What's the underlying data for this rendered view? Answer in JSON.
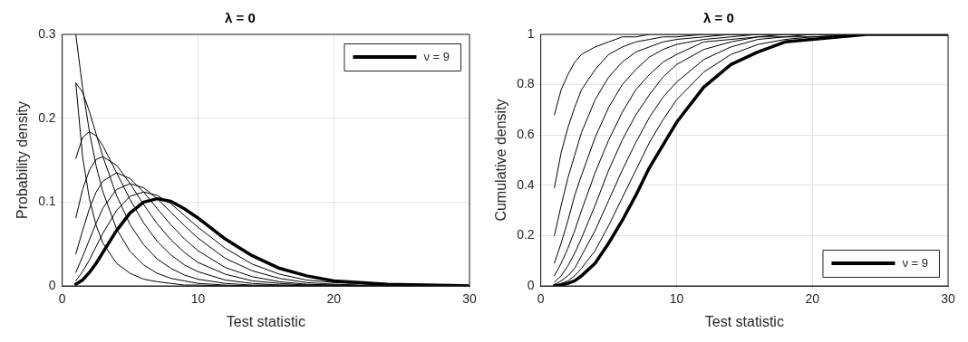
{
  "chart_data": [
    {
      "type": "line",
      "title": "λ = 0",
      "xlabel": "Test statistic",
      "ylabel": "Probability density",
      "x": [
        1,
        1.5,
        2,
        2.5,
        3,
        4,
        5,
        6,
        7,
        8,
        9,
        10,
        12,
        14,
        16,
        18,
        20,
        24,
        30
      ],
      "xlim": [
        0,
        30
      ],
      "xticks": [
        0,
        10,
        20,
        30
      ],
      "ylim": [
        0,
        0.3
      ],
      "yticks": [
        0,
        0.1,
        0.2,
        0.3
      ],
      "grid": true,
      "legend": "top right",
      "series": [
        {
          "color": "#000000",
          "x": [
            1,
            1.5,
            2,
            2.5,
            3,
            4,
            5,
            6,
            7,
            8,
            9,
            10,
            12,
            14,
            16,
            18,
            20,
            24
          ],
          "values": [
            0.242,
            0.154,
            0.104,
            0.072,
            0.051,
            0.027,
            0.015,
            0.008,
            0.005,
            0.003,
            0.001,
            0.001,
            0,
            0,
            0,
            0,
            0,
            0
          ]
        },
        {
          "color": "#000000",
          "values": [
            0.3,
            0.236,
            0.184,
            0.143,
            0.112,
            0.068,
            0.041,
            0.025,
            0.015,
            0.009,
            0.006,
            0.003,
            0.001,
            0,
            0,
            0,
            0,
            0,
            0
          ]
        },
        {
          "color": "#000000",
          "values": [
            0.242,
            0.231,
            0.208,
            0.181,
            0.154,
            0.108,
            0.073,
            0.049,
            0.032,
            0.021,
            0.013,
            0.008,
            0.003,
            0.001,
            0.001,
            0,
            0,
            0,
            0
          ]
        },
        {
          "color": "#000000",
          "values": [
            0.152,
            0.177,
            0.184,
            0.179,
            0.167,
            0.135,
            0.103,
            0.075,
            0.053,
            0.037,
            0.025,
            0.017,
            0.007,
            0.003,
            0.001,
            0.001,
            0,
            0,
            0
          ]
        },
        {
          "color": "#000000",
          "values": [
            0.081,
            0.115,
            0.138,
            0.151,
            0.154,
            0.144,
            0.122,
            0.097,
            0.074,
            0.055,
            0.04,
            0.028,
            0.014,
            0.006,
            0.003,
            0.001,
            0.001,
            0,
            0
          ]
        },
        {
          "color": "#000000",
          "values": [
            0.038,
            0.066,
            0.092,
            0.112,
            0.125,
            0.135,
            0.128,
            0.112,
            0.092,
            0.073,
            0.056,
            0.042,
            0.022,
            0.011,
            0.005,
            0.002,
            0.001,
            0,
            0
          ]
        },
        {
          "color": "#000000",
          "values": [
            0.016,
            0.035,
            0.055,
            0.075,
            0.093,
            0.115,
            0.122,
            0.117,
            0.104,
            0.088,
            0.072,
            0.057,
            0.033,
            0.018,
            0.009,
            0.004,
            0.002,
            0,
            0
          ]
        },
        {
          "color": "#000000",
          "values": [
            0.006,
            0.017,
            0.031,
            0.047,
            0.063,
            0.09,
            0.107,
            0.112,
            0.108,
            0.098,
            0.084,
            0.07,
            0.045,
            0.026,
            0.014,
            0.007,
            0.004,
            0.001,
            0
          ]
        },
        {
          "name": "ν = 9",
          "color": "#000000",
          "values": [
            0.002,
            0.007,
            0.016,
            0.027,
            0.04,
            0.066,
            0.087,
            0.1,
            0.104,
            0.101,
            0.092,
            0.081,
            0.056,
            0.036,
            0.021,
            0.012,
            0.006,
            0.002,
            0
          ]
        }
      ]
    },
    {
      "type": "line",
      "title": "λ = 0",
      "xlabel": "Test statistic",
      "ylabel": "Cumulative density",
      "x": [
        1,
        1.5,
        2,
        2.5,
        3,
        4,
        5,
        6,
        7,
        8,
        9,
        10,
        12,
        14,
        16,
        18,
        20,
        24,
        30
      ],
      "xlim": [
        0,
        30
      ],
      "xticks": [
        0,
        10,
        20,
        30
      ],
      "ylim": [
        0,
        1
      ],
      "yticks": [
        0,
        0.2,
        0.4,
        0.6,
        0.8,
        1
      ],
      "grid": true,
      "legend": "bottom right",
      "series": [
        {
          "color": "#000000",
          "values": [
            0.68,
            0.78,
            0.84,
            0.89,
            0.92,
            0.95,
            0.97,
            0.99,
            0.99,
            1,
            1,
            1,
            1,
            1,
            1,
            1,
            1,
            1,
            1
          ]
        },
        {
          "color": "#000000",
          "values": [
            0.39,
            0.53,
            0.63,
            0.71,
            0.78,
            0.86,
            0.92,
            0.95,
            0.97,
            0.98,
            0.99,
            0.99,
            1,
            1,
            1,
            1,
            1,
            1,
            1
          ]
        },
        {
          "color": "#000000",
          "values": [
            0.2,
            0.32,
            0.43,
            0.52,
            0.61,
            0.74,
            0.83,
            0.89,
            0.93,
            0.95,
            0.97,
            0.98,
            0.99,
            1,
            1,
            1,
            1,
            1,
            1
          ]
        },
        {
          "color": "#000000",
          "values": [
            0.09,
            0.17,
            0.26,
            0.36,
            0.44,
            0.59,
            0.71,
            0.8,
            0.86,
            0.91,
            0.94,
            0.96,
            0.98,
            0.99,
            1,
            1,
            1,
            1,
            1
          ]
        },
        {
          "color": "#000000",
          "values": [
            0.04,
            0.09,
            0.15,
            0.22,
            0.3,
            0.45,
            0.58,
            0.69,
            0.78,
            0.84,
            0.89,
            0.92,
            0.97,
            0.98,
            0.99,
            1,
            1,
            1,
            1
          ]
        },
        {
          "color": "#000000",
          "x": [
            1,
            1.5,
            2,
            2.5,
            3,
            4,
            5,
            6,
            7,
            8,
            9,
            10,
            12,
            14,
            16,
            18,
            20,
            24
          ],
          "values": [
            0.015,
            0.04,
            0.08,
            0.13,
            0.19,
            0.32,
            0.46,
            0.58,
            0.68,
            0.76,
            0.83,
            0.88,
            0.94,
            0.97,
            0.99,
            0.99,
            1,
            1
          ]
        },
        {
          "color": "#000000",
          "values": [
            0.005,
            0.02,
            0.04,
            0.07,
            0.12,
            0.22,
            0.34,
            0.46,
            0.57,
            0.67,
            0.75,
            0.81,
            0.9,
            0.95,
            0.98,
            0.99,
            0.99,
            1,
            1
          ]
        },
        {
          "color": "#000000",
          "x": [
            1,
            1.5,
            2,
            2.5,
            3,
            4,
            5,
            6,
            7,
            8,
            9,
            10,
            12,
            14,
            16,
            18,
            20,
            24
          ],
          "values": [
            0.002,
            0.01,
            0.02,
            0.04,
            0.07,
            0.14,
            0.24,
            0.35,
            0.46,
            0.57,
            0.66,
            0.74,
            0.85,
            0.92,
            0.96,
            0.98,
            0.99,
            1
          ]
        },
        {
          "name": "ν = 9",
          "color": "#000000",
          "values": [
            0.001,
            0.003,
            0.01,
            0.02,
            0.04,
            0.09,
            0.17,
            0.26,
            0.36,
            0.47,
            0.56,
            0.65,
            0.79,
            0.88,
            0.93,
            0.97,
            0.98,
            1,
            1
          ]
        }
      ]
    }
  ]
}
